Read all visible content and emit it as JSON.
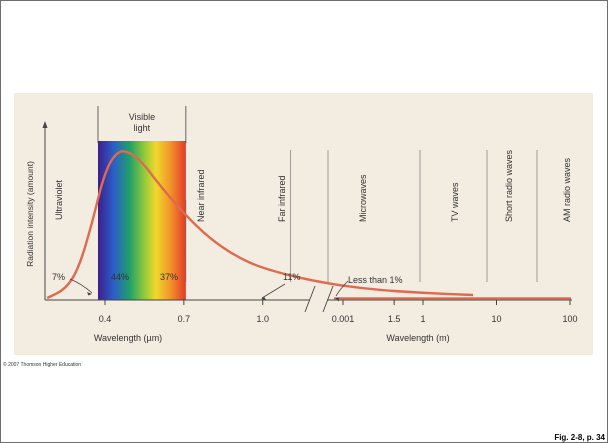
{
  "footer": {
    "copyright": "© 2007 Thomson Higher Education",
    "figure_ref": "Fig. 2-8, p. 34"
  },
  "colors": {
    "panel": "#f3ece0",
    "curve": "#e06a4f",
    "axis": "#444444",
    "text": "#333333"
  },
  "chart_data": {
    "type": "line",
    "title": "",
    "ylabel": "Radiation intensity (amount)",
    "visible_light_label": [
      "Visible",
      "light"
    ],
    "visible_band_um": [
      0.4,
      0.7
    ],
    "axes": [
      {
        "xlabel": "Wavelength (µm)",
        "ticks": [
          0.4,
          0.7,
          1.0,
          1.5
        ],
        "tick_labels": [
          "0.4",
          "0.7",
          "1.0",
          "1.5"
        ]
      },
      {
        "xlabel": "Wavelength (m)",
        "ticks": [
          0.001,
          1,
          10,
          100
        ],
        "tick_labels": [
          "0.001",
          "1",
          "10",
          "100"
        ]
      }
    ],
    "curve": {
      "x_um": [
        0.18,
        0.25,
        0.3,
        0.35,
        0.4,
        0.45,
        0.5,
        0.55,
        0.6,
        0.7,
        0.8,
        0.9,
        1.0,
        1.2,
        1.4,
        1.6,
        1.8
      ],
      "y_relative": [
        0.0,
        0.06,
        0.2,
        0.5,
        0.86,
        1.0,
        0.98,
        0.9,
        0.78,
        0.57,
        0.4,
        0.28,
        0.2,
        0.11,
        0.06,
        0.035,
        0.02
      ]
    },
    "band_labels": [
      "Ultraviolet",
      "Near infrared",
      "Far infrared",
      "Microwaves",
      "TV waves",
      "Short radio waves",
      "AM radio waves"
    ],
    "percent_labels": [
      "7%",
      "44%",
      "37%",
      "11%",
      "Less than 1%"
    ]
  }
}
